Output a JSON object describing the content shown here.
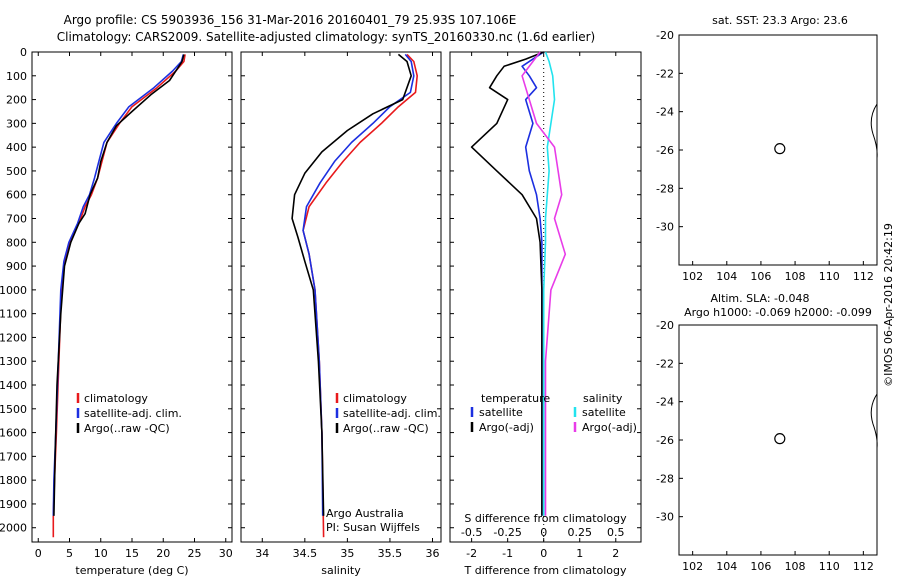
{
  "figure": {
    "title_line1": "Argo profile: CS 5903936_156 31-Mar-2016 20160401_79 25.93S 107.106E",
    "title_line2": "Climatology: CARS2009. Satellite-adjusted climatology: synTS_20160330.nc (1.6d earlier)",
    "credit": "©IMOS 06-Apr-2016 20:42:19",
    "depth_ticks": [
      "0",
      "100",
      "200",
      "300",
      "400",
      "500",
      "600",
      "700",
      "800",
      "900",
      "1000",
      "1100",
      "1200",
      "1300",
      "1400",
      "1500",
      "1600",
      "1700",
      "1800",
      "1900",
      "2000"
    ]
  },
  "colors": {
    "climatology": "#e8191c",
    "satellite": "#1c2fe0",
    "argo": "#000000",
    "cyan": "#22e3ee",
    "magenta": "#e83ce8"
  },
  "chart_data": [
    {
      "type": "line",
      "xlabel": "temperature (deg C)",
      "ylabel": "",
      "xlim": [
        -1,
        31
      ],
      "ylim": [
        2060,
        0
      ],
      "xticks": [
        "0",
        "5",
        "10",
        "15",
        "20",
        "25",
        "30"
      ],
      "legend": [
        "climatology",
        "satellite-adj. clim.",
        "Argo(..raw -QC)"
      ],
      "legend_position": "lower-right",
      "series": [
        {
          "name": "climatology",
          "color_key": "climatology",
          "x": [
            23.5,
            23.3,
            22.0,
            19.0,
            15.0,
            13.0,
            11.0,
            10.3,
            9.5,
            8.5,
            7.5,
            6.5,
            5.0,
            4.2,
            3.7,
            3.3,
            2.9,
            2.6,
            2.4,
            2.4
          ],
          "y": [
            10,
            40,
            80,
            150,
            230,
            300,
            380,
            450,
            530,
            600,
            650,
            720,
            800,
            880,
            1000,
            1300,
            1600,
            1800,
            1950,
            2040
          ]
        },
        {
          "name": "satellite-adj. clim.",
          "color_key": "satellite",
          "x": [
            23.2,
            22.9,
            21.5,
            18.5,
            14.5,
            12.5,
            10.5,
            9.8,
            9.0,
            8.2,
            7.2,
            6.3,
            4.9,
            4.1,
            3.6,
            3.2,
            2.8,
            2.5,
            2.4
          ],
          "y": [
            10,
            40,
            80,
            150,
            230,
            300,
            380,
            450,
            530,
            600,
            650,
            720,
            800,
            880,
            1000,
            1300,
            1600,
            1800,
            1950
          ]
        },
        {
          "name": "Argo(..raw -QC)",
          "color_key": "argo",
          "x": [
            23.3,
            23.0,
            22.5,
            21.0,
            18.0,
            15.0,
            12.5,
            11.0,
            10.0,
            9.5,
            8.3,
            7.5,
            6.5,
            5.2,
            4.2,
            3.6,
            3.0,
            2.7,
            2.5
          ],
          "y": [
            10,
            40,
            60,
            120,
            180,
            250,
            310,
            380,
            460,
            530,
            600,
            680,
            720,
            800,
            900,
            1100,
            1400,
            1700,
            1950
          ]
        }
      ]
    },
    {
      "type": "line",
      "xlabel": "salinity",
      "xlim": [
        33.75,
        36.1
      ],
      "ylim": [
        2060,
        0
      ],
      "xticks": [
        "34",
        "34.5",
        "35",
        "35.5",
        "36"
      ],
      "legend": [
        "climatology",
        "satellite-adj. clim.",
        "Argo(..raw -QC)"
      ],
      "legend_position": "lower-right",
      "annotation": [
        "Argo Australia",
        "PI: Susan Wijffels"
      ],
      "series": [
        {
          "name": "climatology",
          "color_key": "climatology",
          "x": [
            35.7,
            35.78,
            35.82,
            35.8,
            35.6,
            35.4,
            35.15,
            34.95,
            34.75,
            34.55,
            34.48,
            34.55,
            34.62,
            34.67,
            34.7,
            34.71,
            34.72
          ],
          "y": [
            10,
            40,
            100,
            170,
            230,
            300,
            380,
            460,
            550,
            650,
            750,
            850,
            1000,
            1300,
            1600,
            1800,
            2040
          ]
        },
        {
          "name": "satellite-adj. clim.",
          "color_key": "satellite",
          "x": [
            35.68,
            35.75,
            35.78,
            35.74,
            35.5,
            35.3,
            35.05,
            34.85,
            34.68,
            34.52,
            34.48,
            34.55,
            34.62,
            34.67,
            34.7,
            34.71
          ],
          "y": [
            10,
            40,
            100,
            170,
            230,
            300,
            380,
            460,
            550,
            650,
            750,
            850,
            1000,
            1300,
            1600,
            1950
          ]
        },
        {
          "name": "Argo(..raw -QC)",
          "color_key": "argo",
          "x": [
            35.6,
            35.7,
            35.75,
            35.65,
            35.3,
            35.0,
            34.7,
            34.5,
            34.38,
            34.35,
            34.42,
            34.5,
            34.6,
            34.66,
            34.7,
            34.72
          ],
          "y": [
            10,
            40,
            100,
            200,
            260,
            330,
            420,
            510,
            600,
            700,
            780,
            880,
            1000,
            1300,
            1600,
            1950
          ]
        }
      ]
    },
    {
      "type": "line",
      "xlabel": "T difference from climatology",
      "xlabel_secondary": "S difference from climatology",
      "xlim": [
        -2.6,
        2.7
      ],
      "ylim": [
        2060,
        0
      ],
      "xticks": [
        "-2",
        "-1",
        "0",
        "1",
        "2"
      ],
      "xticks_secondary": [
        "-0.5",
        "-0.25",
        "0",
        "0.25",
        "0.5"
      ],
      "legend_left": [
        "temperature",
        "satellite",
        "Argo(-adj)"
      ],
      "legend_right": [
        "salinity",
        "satellite",
        "Argo(-adj)"
      ],
      "series": [
        {
          "name": "temperature satellite",
          "color_key": "satellite",
          "x": [
            0.0,
            -0.3,
            -0.6,
            -0.4,
            -0.2,
            -0.5,
            -0.3,
            -0.5,
            -0.4,
            -0.2,
            -0.1,
            -0.05,
            -0.05,
            -0.05,
            -0.05,
            -0.05
          ],
          "y": [
            0,
            30,
            60,
            100,
            150,
            200,
            300,
            400,
            500,
            600,
            700,
            800,
            1000,
            1300,
            1600,
            1950
          ]
        },
        {
          "name": "temperature Argo(-adj)",
          "color_key": "argo",
          "x": [
            0.0,
            -0.5,
            -1.1,
            -1.3,
            -1.5,
            -1.0,
            -1.3,
            -2.0,
            -1.3,
            -0.6,
            -0.2,
            -0.1,
            -0.05,
            -0.05,
            -0.05
          ],
          "y": [
            0,
            30,
            60,
            100,
            150,
            200,
            300,
            400,
            500,
            600,
            700,
            800,
            1000,
            1300,
            1950
          ]
        },
        {
          "name": "salinity satellite",
          "color_key": "cyan",
          "x": [
            0.05,
            0.15,
            0.25,
            0.3,
            0.2,
            0.1,
            0.15,
            0.1,
            0.05,
            0.05,
            0.0,
            0.0,
            0.0
          ],
          "y": [
            0,
            40,
            100,
            200,
            300,
            400,
            500,
            600,
            700,
            800,
            1000,
            1400,
            1950
          ]
        },
        {
          "name": "salinity Argo(-adj)",
          "color_key": "magenta",
          "x": [
            -0.1,
            -0.3,
            -0.6,
            -0.4,
            -0.2,
            0.3,
            0.4,
            0.5,
            0.3,
            0.6,
            0.2,
            0.05,
            0.05
          ],
          "y": [
            0,
            40,
            100,
            200,
            300,
            400,
            500,
            600,
            700,
            850,
            1000,
            1300,
            1950
          ]
        }
      ]
    },
    {
      "type": "heatmap",
      "title": "sat. SST: 23.3  Argo: 23.6",
      "xticks": [
        "102",
        "104",
        "106",
        "108",
        "110",
        "112"
      ],
      "yticks": [
        "-20",
        "-22",
        "-24",
        "-26",
        "-28",
        "-30"
      ],
      "xlim": [
        101.2,
        112.8
      ],
      "ylim": [
        -32,
        -20
      ],
      "marker": {
        "lon": 107.106,
        "lat": -25.93
      }
    },
    {
      "type": "heatmap",
      "title": "Altim. SLA: -0.048",
      "subtitle": "Argo h1000: -0.069 h2000: -0.099",
      "xticks": [
        "102",
        "104",
        "106",
        "108",
        "110",
        "112"
      ],
      "yticks": [
        "-20",
        "-22",
        "-24",
        "-26",
        "-28",
        "-30"
      ],
      "xlim": [
        101.2,
        112.8
      ],
      "ylim": [
        -32,
        -20
      ],
      "marker": {
        "lon": 107.106,
        "lat": -25.93
      }
    }
  ]
}
